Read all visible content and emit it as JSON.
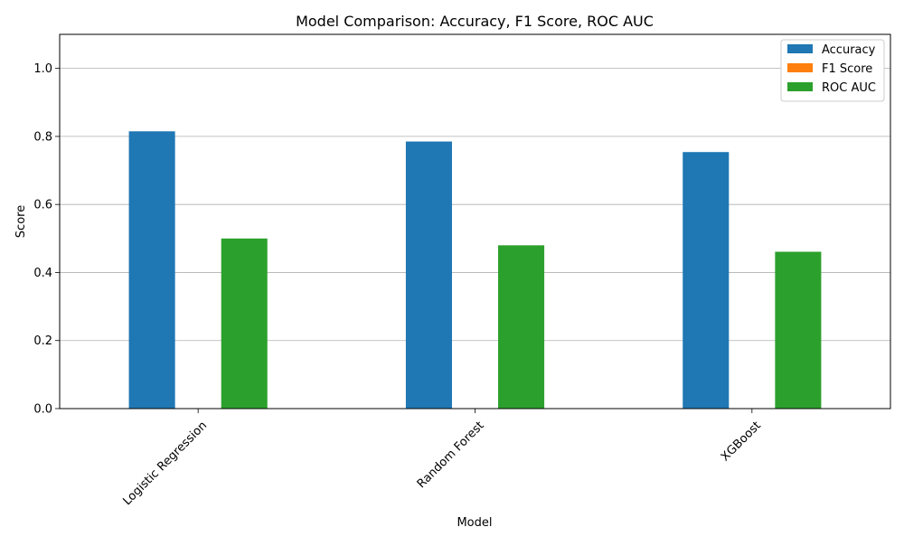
{
  "chart_data": {
    "type": "bar",
    "title": "Model Comparison: Accuracy, F1 Score, ROC AUC",
    "xlabel": "Model",
    "ylabel": "Score",
    "categories": [
      "Logistic Regression",
      "Random Forest",
      "XGBoost"
    ],
    "series": [
      {
        "name": "Accuracy",
        "values": [
          0.815,
          0.785,
          0.754
        ],
        "color": "#1f77b4"
      },
      {
        "name": "F1 Score",
        "values": [
          0.0,
          0.0,
          0.0
        ],
        "color": "#ff7f0e"
      },
      {
        "name": "ROC AUC",
        "values": [
          0.5,
          0.48,
          0.461
        ],
        "color": "#2ca02c"
      }
    ],
    "ylim": [
      0,
      1.1
    ],
    "yticks": [
      0.0,
      0.2,
      0.4,
      0.6,
      0.8,
      1.0
    ],
    "ytick_labels": [
      "0.0",
      "0.2",
      "0.4",
      "0.6",
      "0.8",
      "1.0"
    ],
    "grid": "y",
    "legend_position": "top-right"
  }
}
